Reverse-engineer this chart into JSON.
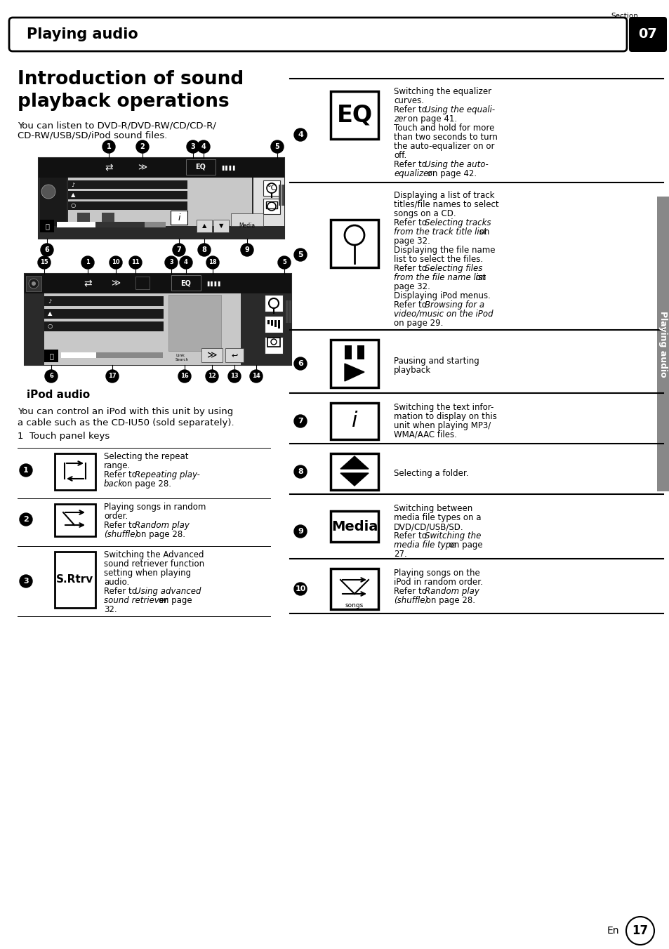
{
  "page_title": "Playing audio",
  "section_num": "07",
  "section_label": "Section",
  "main_heading_1": "Introduction of sound",
  "main_heading_2": "playback operations",
  "intro_line1": "You can listen to DVD-R/DVD-RW/CD/CD-R/",
  "intro_line2": "CD-RW/USB/SD/iPod sound files.",
  "ipod_audio_label": "iPod audio",
  "control_line1": "You can control an iPod with this unit by using",
  "control_line2": "a cable such as the CD-IU50 (sold separately).",
  "touch_panel_label": "1  Touch panel keys",
  "sidebar_label": "Playing audio",
  "page_number": "17",
  "en_label": "En",
  "bg_color": "#ffffff"
}
